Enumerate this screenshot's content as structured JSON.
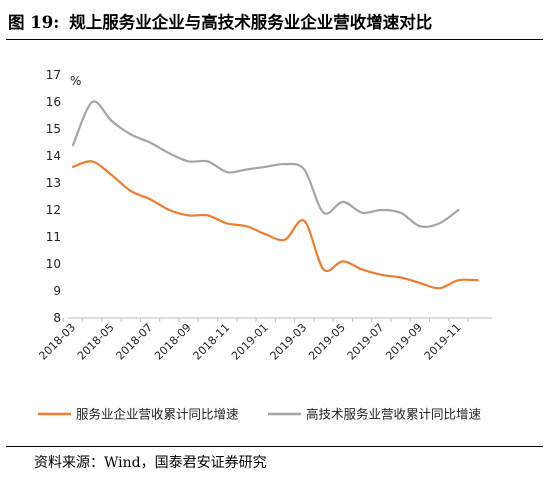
{
  "figure": {
    "number": "图 19:",
    "title": "规上服务业企业与高技术服务业企业营收增速对比"
  },
  "source": "资料来源：Wind，国泰君安证券研究",
  "chart_data": {
    "type": "line",
    "title": "规上服务业企业与高技术服务业企业营收增速对比",
    "ylabel": "%",
    "xlabel": "",
    "ylim": [
      8,
      17
    ],
    "yticks": [
      8,
      9,
      10,
      11,
      12,
      13,
      14,
      15,
      16,
      17
    ],
    "xtick_labels": [
      "2018-03",
      "2018-05",
      "2018-07",
      "2018-09",
      "2018-11",
      "2019-01",
      "2019-03",
      "2019-05",
      "2019-07",
      "2019-09",
      "2019-11"
    ],
    "legend_position": "bottom",
    "grid": false,
    "colors": {
      "services": "#ED7D31",
      "hightech": "#A5A5A5"
    },
    "series": [
      {
        "name": "服务业企业营收累计同比增速",
        "x": [
          "2018-03",
          "2018-04",
          "2018-05",
          "2018-06",
          "2018-07",
          "2018-08",
          "2018-09",
          "2018-10",
          "2018-11",
          "2018-12",
          "2019-01",
          "2019-02",
          "2019-03",
          "2019-04",
          "2019-05",
          "2019-06",
          "2019-07",
          "2019-08",
          "2019-09",
          "2019-10",
          "2019-11",
          "2019-12"
        ],
        "values": [
          13.6,
          13.8,
          13.3,
          12.7,
          12.4,
          12.0,
          11.8,
          11.8,
          11.5,
          11.4,
          11.1,
          10.9,
          11.6,
          9.8,
          10.1,
          9.8,
          9.6,
          9.5,
          9.3,
          9.1,
          9.4,
          9.4
        ]
      },
      {
        "name": "高技术服务业营收累计同比增速",
        "x": [
          "2018-03",
          "2018-04",
          "2018-05",
          "2018-06",
          "2018-07",
          "2018-08",
          "2018-09",
          "2018-10",
          "2018-11",
          "2018-12",
          "2019-01",
          "2019-02",
          "2019-03",
          "2019-04",
          "2019-05",
          "2019-06",
          "2019-07",
          "2019-08",
          "2019-09",
          "2019-10",
          "2019-11"
        ],
        "values": [
          14.4,
          16.0,
          15.3,
          14.8,
          14.5,
          14.1,
          13.8,
          13.8,
          13.4,
          13.5,
          13.6,
          13.7,
          13.5,
          11.9,
          12.3,
          11.9,
          12.0,
          11.9,
          11.4,
          11.5,
          12.0
        ]
      }
    ]
  }
}
